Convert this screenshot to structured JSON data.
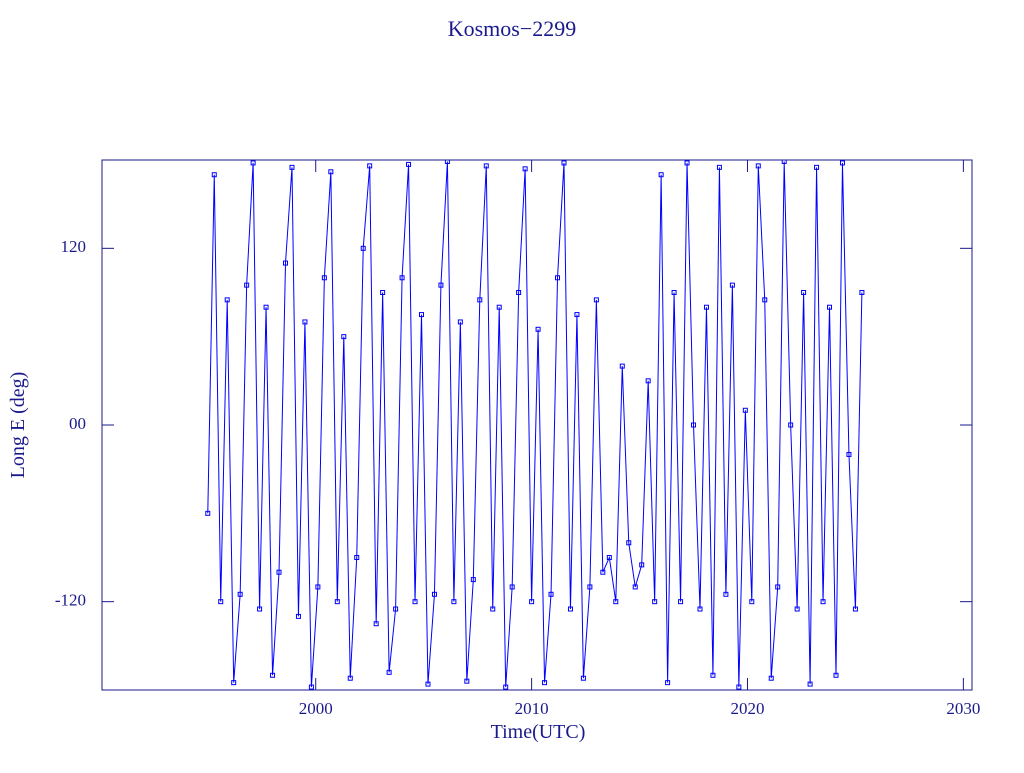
{
  "chart_data": {
    "type": "line",
    "title": "Kosmos−2299",
    "xlabel": "Time(UTC)",
    "ylabel": "Long E (deg)",
    "color": "#0000ff",
    "markers": true,
    "xlim": [
      1990.1,
      2030.4
    ],
    "ylim": [
      -180,
      180
    ],
    "xticks": [
      2000,
      2010,
      2020,
      2030
    ],
    "yticks": [
      -120,
      {
        "value": 0,
        "label": "00"
      },
      120
    ],
    "x": [
      1995.0,
      1995.3,
      1995.6,
      1995.9,
      1996.2,
      1996.5,
      1996.8,
      1997.1,
      1997.4,
      1997.7,
      1998.0,
      1998.3,
      1998.6,
      1998.9,
      1999.2,
      1999.5,
      1999.8,
      2000.1,
      2000.4,
      2000.7,
      2001.0,
      2001.3,
      2001.6,
      2001.9,
      2002.2,
      2002.5,
      2002.8,
      2003.1,
      2003.4,
      2003.7,
      2004.0,
      2004.3,
      2004.6,
      2004.9,
      2005.2,
      2005.5,
      2005.8,
      2006.1,
      2006.4,
      2006.7,
      2007.0,
      2007.3,
      2007.6,
      2007.9,
      2008.2,
      2008.5,
      2008.8,
      2009.1,
      2009.4,
      2009.7,
      2010.0,
      2010.3,
      2010.6,
      2010.9,
      2011.2,
      2011.5,
      2011.8,
      2012.1,
      2012.4,
      2012.7,
      2013.0,
      2013.3,
      2013.6,
      2013.9,
      2014.2,
      2014.5,
      2014.8,
      2015.1,
      2015.4,
      2015.7,
      2016.0,
      2016.3,
      2016.6,
      2016.9,
      2017.2,
      2017.5,
      2017.8,
      2018.1,
      2018.4,
      2018.7,
      2019.0,
      2019.3,
      2019.6,
      2019.9,
      2020.2,
      2020.5,
      2020.8,
      2021.1,
      2021.4,
      2021.7,
      2022.0,
      2022.3,
      2022.6,
      2022.9,
      2023.2,
      2023.5,
      2023.8,
      2024.1,
      2024.4,
      2024.7,
      2025.0,
      2025.3
    ],
    "values": [
      -60,
      170,
      -120,
      85,
      -175,
      -115,
      95,
      178,
      -125,
      80,
      -170,
      -100,
      110,
      175,
      -130,
      70,
      -178,
      -110,
      100,
      172,
      -120,
      60,
      -172,
      -90,
      120,
      176,
      -135,
      90,
      -168,
      -125,
      100,
      177,
      -120,
      75,
      -176,
      -115,
      95,
      179,
      -120,
      70,
      -174,
      -105,
      85,
      176,
      -125,
      80,
      -178,
      -110,
      90,
      174,
      -120,
      65,
      -175,
      -115,
      100,
      178,
      -125,
      75,
      -172,
      -110,
      85,
      -100,
      -90,
      -120,
      40,
      -80,
      -110,
      -95,
      30,
      -120,
      170,
      -175,
      90,
      -120,
      178,
      0,
      -125,
      80,
      -170,
      175,
      -115,
      95,
      -178,
      10,
      -120,
      176,
      85,
      -172,
      -110,
      179,
      0,
      -125,
      90,
      -176,
      175,
      -120,
      80,
      -170,
      178,
      -20,
      -125,
      90
    ]
  }
}
